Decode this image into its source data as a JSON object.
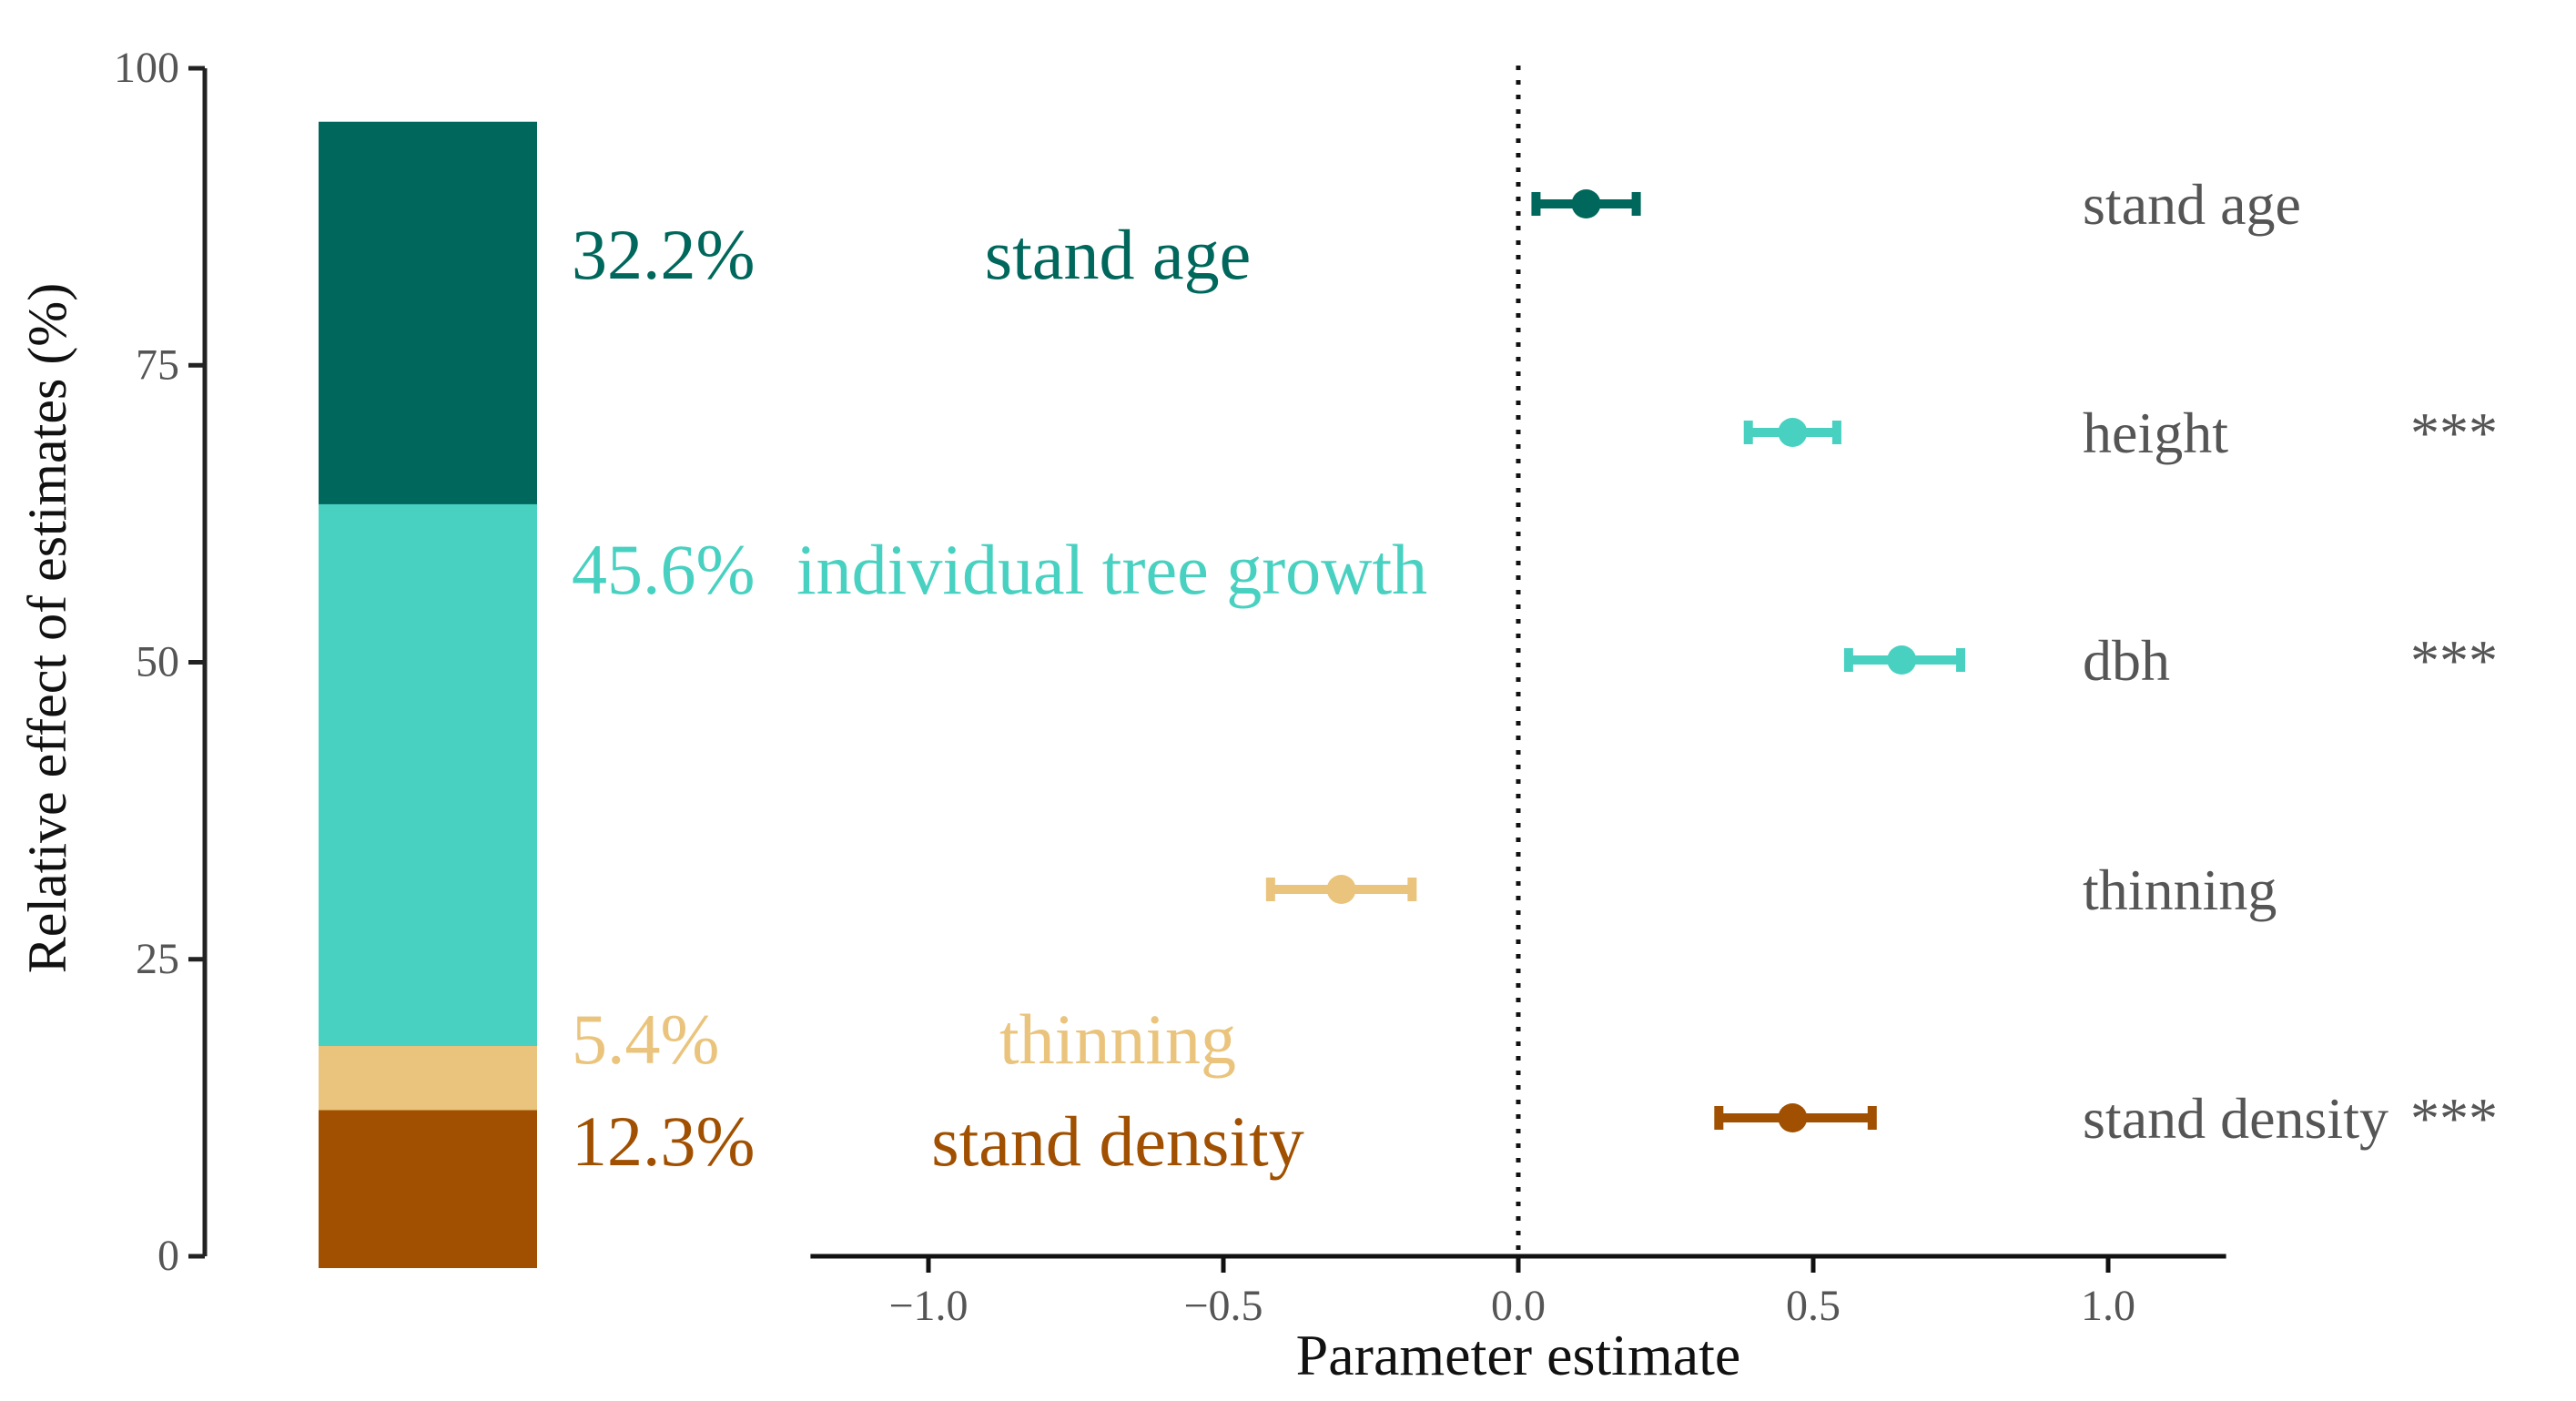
{
  "chart_data": [
    {
      "type": "stacked-bar",
      "ylabel": "Relative effect of estimates (%)",
      "ylim": [
        0,
        100
      ],
      "yticks": [
        0,
        25,
        50,
        75,
        100
      ],
      "segments": [
        {
          "name": "stand density",
          "value": 12.3,
          "label": "12.3%",
          "color": "#A05000"
        },
        {
          "name": "thinning",
          "value": 5.4,
          "label": "5.4%",
          "color": "#EAC47C"
        },
        {
          "name": "individual tree growth",
          "value": 45.6,
          "label": "45.6%",
          "color": "#48D1C1"
        },
        {
          "name": "stand age",
          "value": 32.2,
          "label": "32.2%",
          "color": "#00675C"
        }
      ]
    },
    {
      "type": "scatter",
      "subtype": "coefficient-plot",
      "xlabel": "Parameter estimate",
      "xlim": [
        -1.2,
        1.2
      ],
      "xticks": [
        -1.0,
        -0.5,
        0.0,
        0.5,
        1.0
      ],
      "xtick_labels": [
        "−1.0",
        "−0.5",
        "0.0",
        "0.5",
        "1.0"
      ],
      "reference_line": 0,
      "series": [
        {
          "name": "stand age",
          "estimate": 0.115,
          "ci_low": 0.03,
          "ci_high": 0.2,
          "significance": "",
          "color": "#00675C"
        },
        {
          "name": "height",
          "estimate": 0.465,
          "ci_low": 0.39,
          "ci_high": 0.54,
          "significance": "***",
          "color": "#48D1C1"
        },
        {
          "name": "dbh",
          "estimate": 0.65,
          "ci_low": 0.56,
          "ci_high": 0.75,
          "significance": "***",
          "color": "#48D1C1"
        },
        {
          "name": "thinning",
          "estimate": -0.3,
          "ci_low": -0.42,
          "ci_high": -0.18,
          "significance": "",
          "color": "#EAC47C"
        },
        {
          "name": "stand density",
          "estimate": 0.465,
          "ci_low": 0.34,
          "ci_high": 0.6,
          "significance": "***",
          "color": "#A05000"
        }
      ]
    }
  ]
}
